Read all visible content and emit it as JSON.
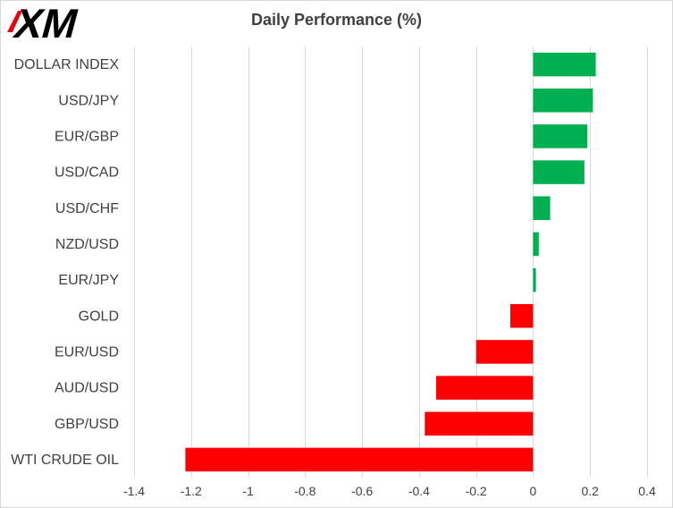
{
  "header": {
    "logo_text": "XM",
    "title": "Daily Performance (%)"
  },
  "colors": {
    "positive": "#00b050",
    "negative": "#ff0000",
    "grid": "#d9d9d9",
    "text": "#404040"
  },
  "chart_data": {
    "type": "bar",
    "orientation": "horizontal",
    "title": "Daily Performance (%)",
    "categories": [
      "DOLLAR INDEX",
      "USD/JPY",
      "EUR/GBP",
      "USD/CAD",
      "USD/CHF",
      "NZD/USD",
      "EUR/JPY",
      "GOLD",
      "EUR/USD",
      "AUD/USD",
      "GBP/USD",
      "WTI CRUDE OIL"
    ],
    "values": [
      0.22,
      0.21,
      0.19,
      0.18,
      0.06,
      0.02,
      0.01,
      -0.08,
      -0.2,
      -0.34,
      -0.38,
      -1.22
    ],
    "xlim": [
      -1.4,
      0.4
    ],
    "xticks": [
      "-1.4",
      "-1.2",
      "-1",
      "-0.8",
      "-0.6",
      "-0.4",
      "-0.2",
      "0",
      "0.2",
      "0.4"
    ],
    "grid": "vertical",
    "legend": "none"
  }
}
